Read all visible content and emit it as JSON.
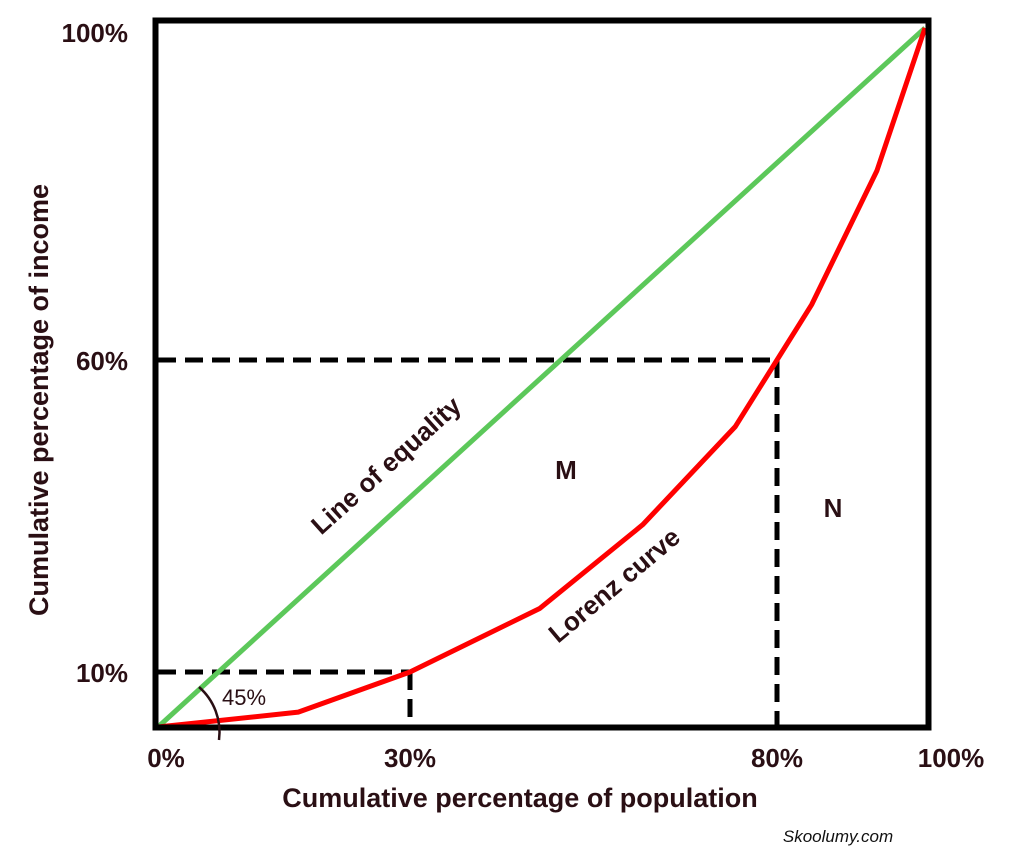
{
  "chart_data": {
    "type": "line",
    "title": "",
    "xlabel": "Cumulative percentage of population",
    "ylabel": "Cumulative percentage of income",
    "xlim": [
      0,
      100
    ],
    "ylim": [
      0,
      100
    ],
    "x_ticks": [
      {
        "value": 0,
        "label": "0%"
      },
      {
        "value": 30,
        "label": "30%"
      },
      {
        "value": 80,
        "label": "80%"
      },
      {
        "value": 100,
        "label": "100%"
      }
    ],
    "y_ticks": [
      {
        "value": 10,
        "label": "10%"
      },
      {
        "value": 60,
        "label": "60%"
      },
      {
        "value": 100,
        "label": "100%"
      }
    ],
    "grid": false,
    "series": [
      {
        "name": "Line of equality",
        "color": "#5cc85a",
        "points": [
          [
            0,
            0
          ],
          [
            100,
            100
          ]
        ]
      },
      {
        "name": "Lorenz curve",
        "color": "#ff0000",
        "points": [
          [
            0,
            0
          ],
          [
            16.7,
            2.7
          ],
          [
            30,
            10
          ],
          [
            47.7,
            20.2
          ],
          [
            61.7,
            33.6
          ],
          [
            74.3,
            49.3
          ],
          [
            80,
            60
          ],
          [
            84.7,
            66.7
          ],
          [
            93.5,
            82.8
          ],
          [
            100,
            100
          ]
        ]
      }
    ],
    "reference_lines": [
      {
        "from": [
          0,
          10
        ],
        "to": [
          30,
          10
        ]
      },
      {
        "from": [
          30,
          10
        ],
        "to": [
          30,
          0
        ]
      },
      {
        "from": [
          0,
          60
        ],
        "to": [
          80,
          60
        ]
      },
      {
        "from": [
          80,
          60
        ],
        "to": [
          80,
          0
        ]
      }
    ],
    "annotations": {
      "angle": "45%",
      "region_m": "M",
      "region_n": "N"
    }
  },
  "watermark": "Skoolumy.com"
}
